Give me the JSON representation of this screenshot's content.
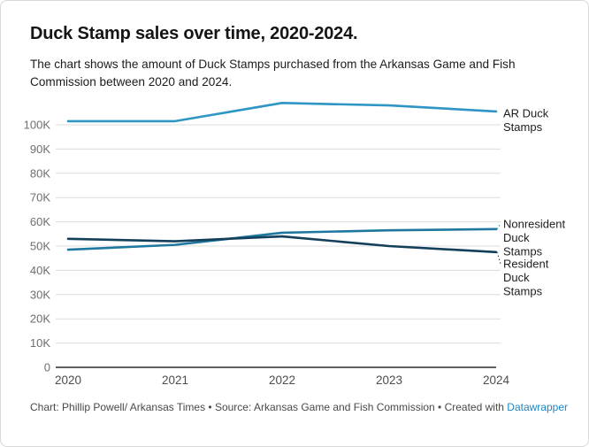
{
  "header": {
    "title": "Duck Stamp sales over time, 2020-2024.",
    "subtitle": "The chart shows the amount of Duck Stamps purchased from the Arkansas Game and Fish Commission between 2020 and 2024."
  },
  "chart_data": {
    "type": "line",
    "x": [
      "2020",
      "2021",
      "2022",
      "2023",
      "2024"
    ],
    "series": [
      {
        "name": "AR Duck Stamps",
        "label_lines": [
          "AR Duck",
          "Stamps"
        ],
        "color": "#2e96c5",
        "values": [
          101500,
          101500,
          109000,
          108000,
          105500
        ]
      },
      {
        "name": "Nonresident Duck Stamps",
        "label_lines": [
          "Nonresident",
          "Duck",
          "Stamps"
        ],
        "color": "#1e78a0",
        "values": [
          48500,
          50500,
          55500,
          56500,
          57000
        ]
      },
      {
        "name": "Resident Duck Stamps",
        "label_lines": [
          "Resident",
          "Duck",
          "Stamps"
        ],
        "color": "#133f5a",
        "values": [
          53000,
          52000,
          54000,
          50000,
          47500
        ]
      }
    ],
    "y_ticks": [
      "0",
      "10K",
      "20K",
      "30K",
      "40K",
      "50K",
      "60K",
      "70K",
      "80K",
      "90K",
      "100K"
    ],
    "ylim": [
      0,
      110000
    ],
    "grid": true,
    "legend_position": "direct-labels-right",
    "colors": {
      "gridline": "#dcdcdc",
      "axis_line": "#2b2b2b",
      "y_tick_text": "#6e6e6e",
      "x_tick_text": "#4d4d4d",
      "label_text": "#1d1d1d"
    }
  },
  "footer": {
    "prefix": "Chart: Phillip Powell/ Arkansas Times • Source: Arkansas Game and Fish Commission • Created with ",
    "link_label": "Datawrapper"
  }
}
